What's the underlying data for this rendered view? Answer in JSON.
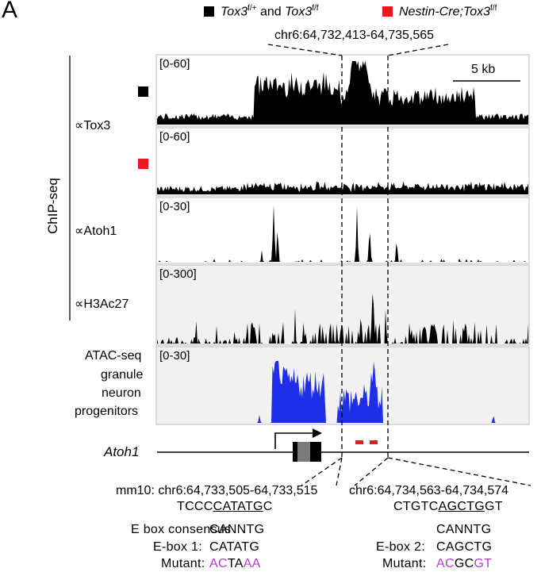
{
  "panel_label": "A",
  "legend": {
    "wt_genotype_a": "Tox3",
    "wt_genotype_a_sup": "f/+",
    "wt_and": " and ",
    "wt_genotype_b": "Tox3",
    "wt_genotype_b_sup": "f/f",
    "mutant_prefix": "Nestin-Cre;Tox3",
    "mutant_sup": "f/f",
    "colors": {
      "wt": "#000000",
      "mutant": "#e8191e",
      "atac": "#1f2ee8",
      "motif_mark": "#e8191e"
    }
  },
  "region": {
    "coords": "chr6:64,732,413-64,735,565",
    "scale_bar": "5 kb"
  },
  "group_label": "ChIP-seq",
  "tracks": [
    {
      "label": "∝Tox3",
      "range": "[0-60]",
      "condition": "control",
      "color": "#000000",
      "shaded": false
    },
    {
      "label": "",
      "range": "[0-60]",
      "condition": "mutant",
      "color": "#000000",
      "shaded": false
    },
    {
      "label": "∝Atoh1",
      "range": "[0-30]",
      "condition": "",
      "color": "#000000",
      "shaded": false
    },
    {
      "label": "∝H3Ac27",
      "range": "[0-300]",
      "condition": "",
      "color": "#000000",
      "shaded": true
    },
    {
      "label_lines": [
        "ATAC-seq",
        "granule",
        "neuron",
        "progenitors"
      ],
      "range": "[0-30]",
      "color": "#1f2ee8",
      "shaded": true
    }
  ],
  "gene": {
    "name": "Atoh1"
  },
  "ebox1": {
    "coords": "mm10: chr6:64,733,505-64,733,515",
    "seq_prefix": "TCCC",
    "seq_motif": "CATATG",
    "seq_suffix": "C",
    "label": "E-box 1:",
    "motif": "CATATG",
    "mutant_label": "Mutant:",
    "mutant_parts": [
      [
        "AC",
        true
      ],
      [
        "TA",
        false
      ],
      [
        "AA",
        true
      ]
    ]
  },
  "ebox2": {
    "coords": "chr6:64,734,563-64,734,574",
    "seq_prefix": "CTGTC",
    "seq_motif": "AGCTG",
    "seq_suffix": "GT",
    "label": "E-box 2:",
    "motif": "CAGCTG",
    "mutant_label": "Mutant:",
    "mutant_parts": [
      [
        "AC",
        true
      ],
      [
        "GC",
        false
      ],
      [
        "GT",
        true
      ]
    ]
  },
  "consensus": {
    "label": "E box consensus",
    "motif": "CANNTG",
    "motif2": "CANNTG"
  }
}
